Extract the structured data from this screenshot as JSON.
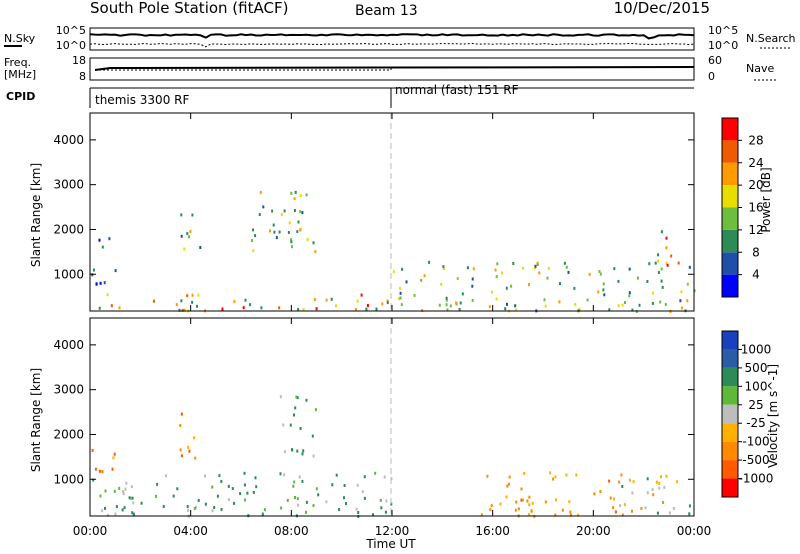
{
  "header": {
    "station": "South Pole Station (fitACF)",
    "beam": "Beam 13",
    "date": "10/Dec/2015"
  },
  "noise_panel": {
    "left_label": "N.Sky",
    "left_ticks": [
      "10^5",
      "10^0"
    ],
    "right_ticks": [
      "10^5",
      "10^0"
    ],
    "right_label": "N.Search"
  },
  "freq_panel": {
    "label_line1": "Freq.",
    "label_line2": "[MHz]",
    "left_ticks": [
      "18",
      "8"
    ],
    "right_ticks": [
      "60",
      "0"
    ],
    "right_label": "Nave"
  },
  "cpid_panel": {
    "label": "CPID",
    "segments": [
      {
        "start_hour": 0,
        "end_hour": 12,
        "text": "themis 3300 RF"
      },
      {
        "start_hour": 12,
        "end_hour": 24,
        "text": "normal (fast) 151 RF"
      }
    ]
  },
  "axes": {
    "ylabel": "Slant Range [km]",
    "xlabel": "Time UT",
    "y_ticks": [
      "1000",
      "2000",
      "3000",
      "4000"
    ],
    "x_ticks": [
      "00:00",
      "04:00",
      "08:00",
      "12:00",
      "16:00",
      "20:00",
      "00:00"
    ]
  },
  "power_colorbar": {
    "title": "Power [dB]",
    "ticks": [
      "4",
      "8",
      "12",
      "16",
      "20",
      "24",
      "28"
    ],
    "colors": [
      "#0000ff",
      "#1f4fa8",
      "#2e8b57",
      "#6dbd3f",
      "#e8dd00",
      "#ff9a00",
      "#f05a00",
      "#ff0000"
    ]
  },
  "velocity_colorbar": {
    "title": "Velocity [m s^-1]",
    "ticks": [
      "1000",
      "500",
      "100",
      "25",
      "-25",
      "-100",
      "-500",
      "-1000"
    ],
    "colors": [
      "#1a3fbf",
      "#2a5ca8",
      "#2e8b57",
      "#5fb83a",
      "#bdbdbd",
      "#ffb000",
      "#ff8a00",
      "#ff5a00",
      "#ff0000"
    ]
  },
  "chart_data": [
    {
      "type": "heatmap",
      "title": "",
      "quantity": "Power",
      "xlabel": "Time UT",
      "ylabel": "Slant Range [km]",
      "xlim_hours": [
        0,
        24
      ],
      "ylim_km": [
        180,
        4600
      ],
      "colorbar_ticks_dB": [
        4,
        8,
        12,
        16,
        20,
        24,
        28
      ],
      "echo_regions": [
        {
          "t0": 0.0,
          "t1": 1.0,
          "r0": 800,
          "r1": 2000,
          "level": "low"
        },
        {
          "t0": 0.0,
          "t1": 12.0,
          "r0": 200,
          "r1": 600,
          "level": "high"
        },
        {
          "t0": 3.5,
          "t1": 4.5,
          "r0": 1500,
          "r1": 2500,
          "level": "mid"
        },
        {
          "t0": 6.0,
          "t1": 9.0,
          "r0": 1500,
          "r1": 2900,
          "level": "mid"
        },
        {
          "t0": 12.0,
          "t1": 24.0,
          "r0": 200,
          "r1": 1300,
          "level": "mid"
        },
        {
          "t0": 22.5,
          "t1": 23.5,
          "r0": 1000,
          "r1": 2100,
          "level": "high"
        }
      ]
    },
    {
      "type": "heatmap",
      "title": "",
      "quantity": "Velocity",
      "xlabel": "Time UT",
      "ylabel": "Slant Range [km]",
      "xlim_hours": [
        0,
        24
      ],
      "ylim_km": [
        180,
        4600
      ],
      "colorbar_ticks_ms": [
        1000,
        500,
        100,
        25,
        -25,
        -100,
        -500,
        -1000
      ],
      "echo_regions": [
        {
          "t0": 0.0,
          "t1": 1.0,
          "r0": 1200,
          "r1": 2000,
          "level": "negative"
        },
        {
          "t0": 0.0,
          "t1": 12.0,
          "r0": 200,
          "r1": 1200,
          "level": "positive"
        },
        {
          "t0": 3.5,
          "t1": 4.5,
          "r0": 1500,
          "r1": 2500,
          "level": "negative"
        },
        {
          "t0": 7.5,
          "t1": 9.0,
          "r0": 1500,
          "r1": 2900,
          "level": "positive"
        },
        {
          "t0": 15.5,
          "t1": 21.0,
          "r0": 200,
          "r1": 1200,
          "level": "negative"
        },
        {
          "t0": 21.0,
          "t1": 24.0,
          "r0": 200,
          "r1": 1300,
          "level": "mixed"
        }
      ]
    }
  ]
}
